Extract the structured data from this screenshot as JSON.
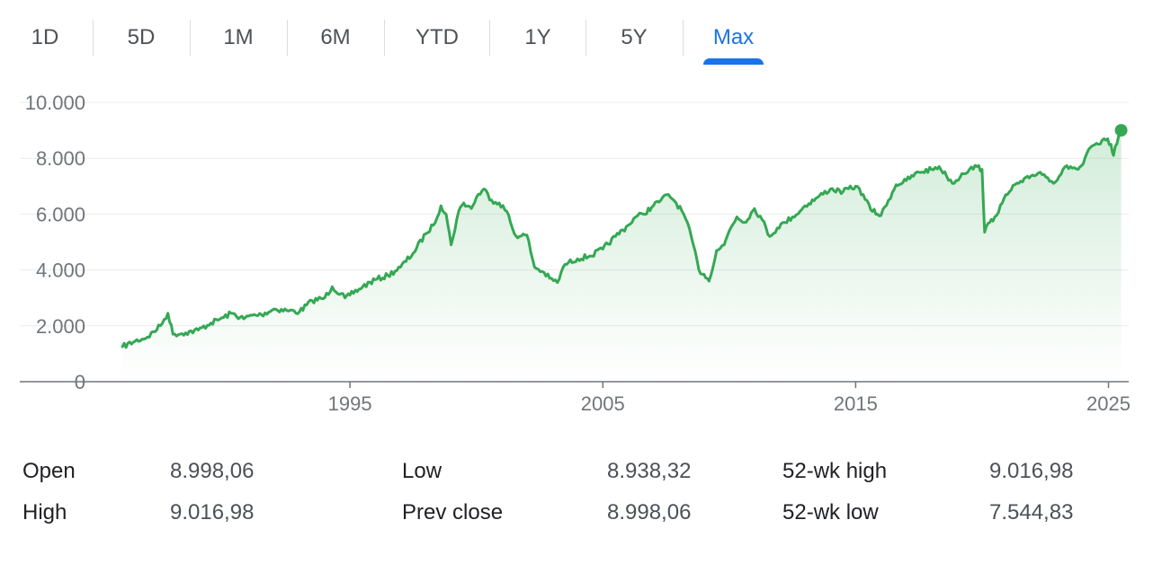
{
  "tabs": [
    {
      "label": "1D"
    },
    {
      "label": "5D"
    },
    {
      "label": "1M"
    },
    {
      "label": "6M"
    },
    {
      "label": "YTD"
    },
    {
      "label": "1Y"
    },
    {
      "label": "5Y"
    },
    {
      "label": "Max"
    }
  ],
  "selected_tab": "Max",
  "colors": {
    "line": "#34a853",
    "accent": "#1a73e8",
    "gridline": "#ebebeb",
    "axis": "#70757a"
  },
  "chart_data": {
    "type": "area",
    "title": "",
    "xlabel": "",
    "ylabel": "",
    "x_ticks": [
      "1995",
      "2005",
      "2015",
      "2025"
    ],
    "y_ticks": [
      "0",
      "2.000",
      "4.000",
      "6.000",
      "8.000",
      "10.000"
    ],
    "xlim": [
      1985.0,
      2025.8
    ],
    "ylim": [
      0,
      10000
    ],
    "grid": true,
    "legend": "none",
    "series": [
      {
        "x": [
          1986.0,
          1986.5,
          1987.0,
          1987.5,
          1987.8,
          1988.0,
          1988.5,
          1989.0,
          1989.5,
          1990.0,
          1990.3,
          1990.8,
          1991.0,
          1991.5,
          1992.0,
          1992.5,
          1993.0,
          1993.5,
          1994.0,
          1994.3,
          1994.8,
          1995.0,
          1995.5,
          1996.0,
          1996.5,
          1997.0,
          1997.5,
          1998.0,
          1998.3,
          1998.6,
          1998.8,
          1999.0,
          1999.3,
          1999.5,
          1999.8,
          2000.0,
          2000.3,
          2000.6,
          2000.9,
          2001.2,
          2001.5,
          2001.7,
          2002.0,
          2002.3,
          2002.6,
          2002.9,
          2003.2,
          2003.5,
          2004.0,
          2004.5,
          2005.0,
          2005.5,
          2006.0,
          2006.3,
          2006.6,
          2007.0,
          2007.3,
          2007.6,
          2007.9,
          2008.2,
          2008.5,
          2008.8,
          2009.0,
          2009.2,
          2009.5,
          2009.8,
          2010.0,
          2010.3,
          2010.6,
          2011.0,
          2011.3,
          2011.6,
          2011.9,
          2012.2,
          2012.5,
          2012.8,
          2013.0,
          2013.5,
          2014.0,
          2014.5,
          2015.0,
          2015.3,
          2015.6,
          2016.0,
          2016.3,
          2016.6,
          2017.0,
          2017.5,
          2018.0,
          2018.3,
          2018.6,
          2018.9,
          2019.2,
          2019.5,
          2019.8,
          2020.0,
          2020.1,
          2020.3,
          2020.5,
          2020.8,
          2021.0,
          2021.3,
          2021.6,
          2022.0,
          2022.3,
          2022.6,
          2022.9,
          2023.2,
          2023.5,
          2023.8,
          2024.0,
          2024.3,
          2024.6,
          2024.9,
          2025.1,
          2025.2,
          2025.4,
          2025.5
        ],
        "values": [
          1250,
          1450,
          1600,
          2000,
          2450,
          1700,
          1750,
          1850,
          2100,
          2300,
          2450,
          2250,
          2350,
          2400,
          2600,
          2550,
          2500,
          2900,
          3000,
          3400,
          3000,
          3100,
          3400,
          3650,
          3800,
          4100,
          4600,
          5300,
          5600,
          6300,
          6000,
          4900,
          6100,
          6400,
          6200,
          6600,
          6900,
          6500,
          6400,
          6100,
          5300,
          5200,
          5250,
          4100,
          3950,
          3700,
          3550,
          4200,
          4400,
          4500,
          4750,
          5200,
          5600,
          5900,
          6000,
          6300,
          6500,
          6700,
          6400,
          6000,
          5200,
          4000,
          3850,
          3600,
          4700,
          4900,
          5400,
          5900,
          5700,
          6200,
          5800,
          5200,
          5500,
          5700,
          5900,
          6100,
          6300,
          6600,
          6900,
          6800,
          7000,
          6700,
          6150,
          5950,
          6500,
          7050,
          7200,
          7500,
          7600,
          7700,
          7350,
          7100,
          7450,
          7600,
          7700,
          7600,
          5350,
          5700,
          5900,
          6400,
          6700,
          7050,
          7150,
          7400,
          7500,
          7300,
          7150,
          7600,
          7700,
          7600,
          7800,
          8400,
          8500,
          8650,
          8500,
          8100,
          8800,
          9000
        ]
      }
    ],
    "last_point": {
      "x": 2025.5,
      "value": 9000
    }
  },
  "stats": [
    {
      "label": "Open",
      "value": "8.998,06"
    },
    {
      "label": "High",
      "value": "9.016,98"
    },
    {
      "label": "Low",
      "value": "8.938,32"
    },
    {
      "label": "Prev close",
      "value": "8.998,06"
    },
    {
      "label": "52-wk high",
      "value": "9.016,98"
    },
    {
      "label": "52-wk low",
      "value": "7.544,83"
    }
  ]
}
